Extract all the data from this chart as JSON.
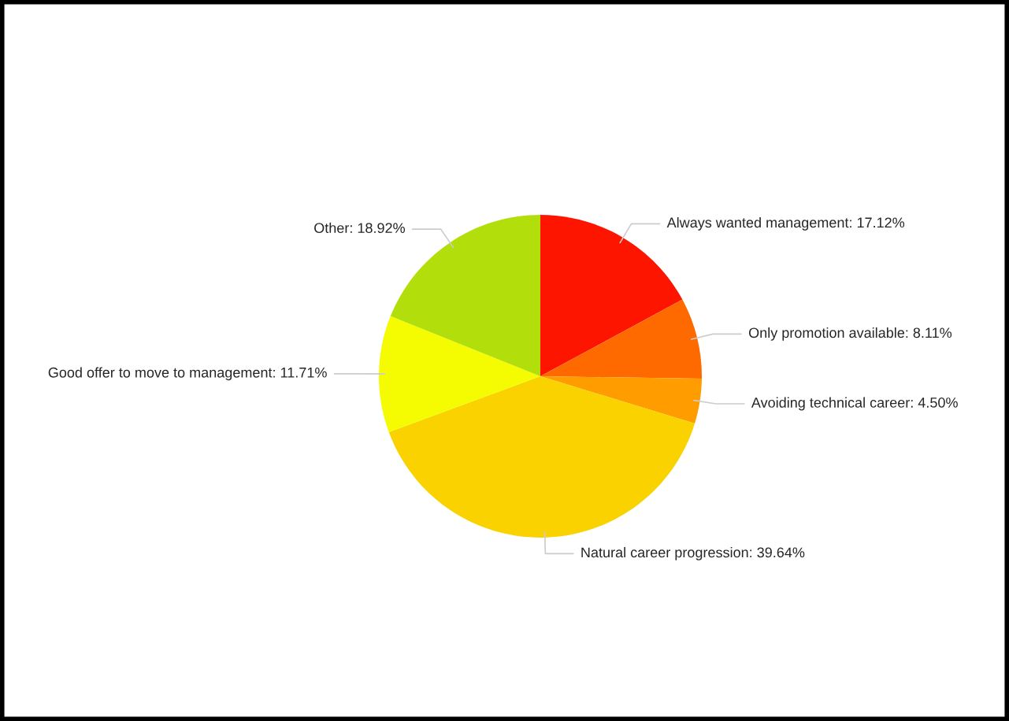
{
  "chart_data": {
    "type": "pie",
    "categories": [
      "Always wanted management: 17.12%",
      "Only promotion available: 8.11%",
      "Avoiding technical career: 4.50%",
      "Natural career progression: 39.64%",
      "Good offer to move to management: 11.71%",
      "Other: 18.92%"
    ],
    "values": [
      17.12,
      8.11,
      4.5,
      39.64,
      11.71,
      18.92
    ],
    "colors": [
      "#fe1500",
      "#fe6a00",
      "#fe9c00",
      "#f9d200",
      "#f5fb00",
      "#b2de0b"
    ]
  }
}
